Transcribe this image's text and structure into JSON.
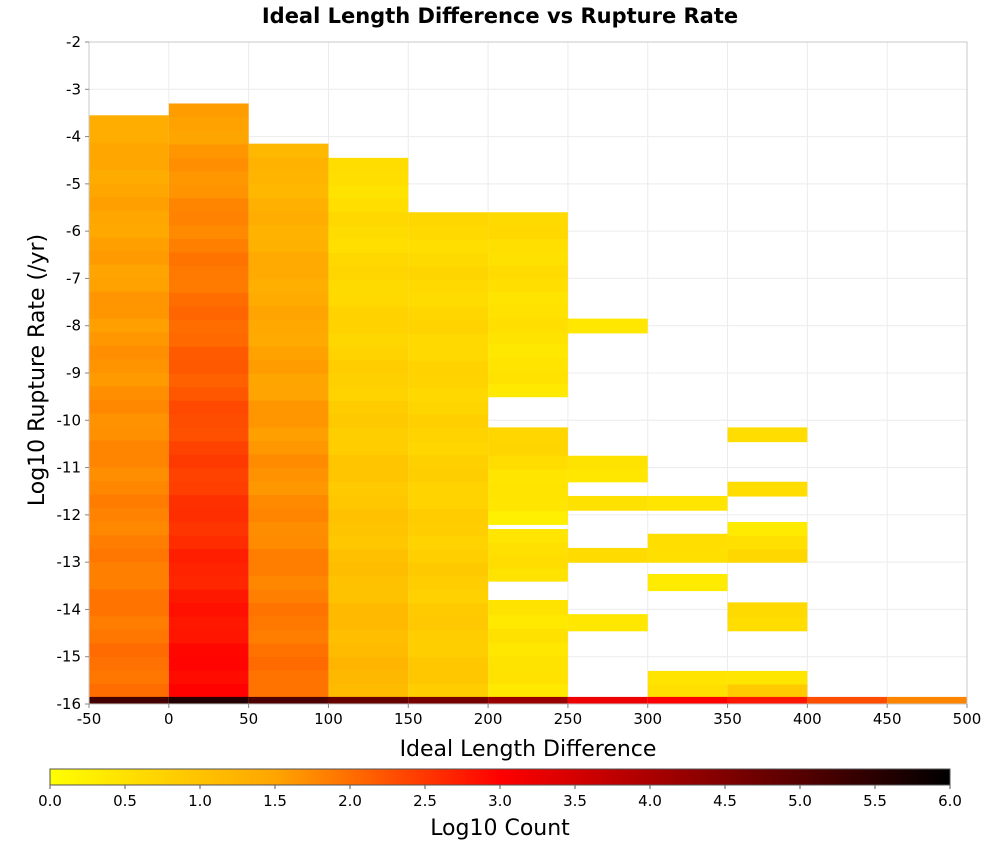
{
  "chart_data": {
    "type": "heatmap",
    "title": "Ideal Length Difference vs Rupture Rate",
    "xlabel": "Ideal Length Difference",
    "ylabel": "Log10 Rupture Rate (/yr)",
    "colorbar_label": "Log10 Count",
    "xlim": [
      -50,
      500
    ],
    "ylim": [
      -16,
      -2
    ],
    "x_ticks": [
      "-50",
      "0",
      "50",
      "100",
      "150",
      "200",
      "250",
      "300",
      "350",
      "400",
      "450",
      "500"
    ],
    "y_ticks": [
      "-2",
      "-3",
      "-4",
      "-5",
      "-6",
      "-7",
      "-8",
      "-9",
      "-10",
      "-11",
      "-12",
      "-13",
      "-14",
      "-15",
      "-16"
    ],
    "colorbar_ticks": [
      "0.0",
      "0.5",
      "1.0",
      "1.5",
      "2.0",
      "2.5",
      "3.0",
      "3.5",
      "4.0",
      "4.5",
      "5.0",
      "5.5",
      "6.0"
    ],
    "colorscale": {
      "min": 0,
      "max": 6,
      "stops": [
        "#ffff00",
        "#ffa500",
        "#ff0000",
        "#800000",
        "#000000"
      ]
    },
    "grid": true,
    "bin_width_x": 50,
    "bin_height_y": 0.286,
    "columns": [
      {
        "x": -25,
        "segments": [
          {
            "y0": -15.85,
            "y1": -3.55,
            "z0": 2.0,
            "z1": 1.4
          }
        ]
      },
      {
        "x": 25,
        "segments": [
          {
            "y0": -15.85,
            "y1": -3.3,
            "z0": 3.0,
            "z1": 1.5
          }
        ]
      },
      {
        "x": 75,
        "segments": [
          {
            "y0": -15.85,
            "y1": -4.15,
            "z0": 2.0,
            "z1": 1.2
          }
        ]
      },
      {
        "x": 125,
        "segments": [
          {
            "y0": -15.85,
            "y1": -4.45,
            "z0": 1.2,
            "z1": 0.5
          }
        ]
      },
      {
        "x": 175,
        "segments": [
          {
            "y0": -15.85,
            "y1": -5.6,
            "z0": 0.9,
            "z1": 0.6
          }
        ]
      },
      {
        "x": 225,
        "segments": [
          {
            "y0": -15.85,
            "y1": -14.4,
            "z0": 0.4,
            "z1": 0.5
          },
          {
            "y0": -14.4,
            "y1": -13.8,
            "z0": 0.4,
            "z1": 0.4
          },
          {
            "y0": -13.4,
            "y1": -12.3,
            "z0": 0.5,
            "z1": 0.5
          },
          {
            "y0": -12.2,
            "y1": -10.15,
            "z0": 0.3,
            "z1": 0.7
          },
          {
            "y0": -9.5,
            "y1": -5.6,
            "z0": 0.4,
            "z1": 0.6
          }
        ]
      },
      {
        "x": 275,
        "segments": [
          {
            "y0": -14.45,
            "y1": -14.1,
            "z0": 0.4,
            "z1": 0.4
          },
          {
            "y0": -13.0,
            "y1": -12.7,
            "z0": 0.6,
            "z1": 0.6
          },
          {
            "y0": -11.9,
            "y1": -11.6,
            "z0": 0.5,
            "z1": 0.5
          },
          {
            "y0": -11.3,
            "y1": -10.75,
            "z0": 0.4,
            "z1": 0.4
          },
          {
            "y0": -8.15,
            "y1": -7.85,
            "z0": 0.4,
            "z1": 0.4
          }
        ]
      },
      {
        "x": 325,
        "segments": [
          {
            "y0": -15.85,
            "y1": -15.3,
            "z0": 0.5,
            "z1": 0.4
          },
          {
            "y0": -13.6,
            "y1": -13.25,
            "z0": 0.3,
            "z1": 0.3
          },
          {
            "y0": -13.0,
            "y1": -12.4,
            "z0": 0.5,
            "z1": 0.5
          },
          {
            "y0": -11.9,
            "y1": -11.6,
            "z0": 0.4,
            "z1": 0.4
          }
        ]
      },
      {
        "x": 375,
        "segments": [
          {
            "y0": -15.85,
            "y1": -15.3,
            "z0": 0.8,
            "z1": 0.4
          },
          {
            "y0": -14.45,
            "y1": -13.85,
            "z0": 0.5,
            "z1": 0.6
          },
          {
            "y0": -13.0,
            "y1": -12.15,
            "z0": 0.6,
            "z1": 0.4
          },
          {
            "y0": -11.6,
            "y1": -11.3,
            "z0": 0.5,
            "z1": 0.5
          },
          {
            "y0": -10.45,
            "y1": -10.15,
            "z0": 0.5,
            "z1": 0.5
          }
        ]
      }
    ],
    "bottom_row": {
      "y0": -16.0,
      "y1": -15.85,
      "cells": [
        {
          "x": -25,
          "z": 5.2
        },
        {
          "x": 25,
          "z": 5.6
        },
        {
          "x": 75,
          "z": 5.1
        },
        {
          "x": 125,
          "z": 4.8
        },
        {
          "x": 175,
          "z": 4.6
        },
        {
          "x": 225,
          "z": 4.2
        },
        {
          "x": 275,
          "z": 3.2
        },
        {
          "x": 325,
          "z": 3.0
        },
        {
          "x": 375,
          "z": 2.8
        },
        {
          "x": 425,
          "z": 2.3
        },
        {
          "x": 475,
          "z": 1.8
        }
      ]
    }
  }
}
